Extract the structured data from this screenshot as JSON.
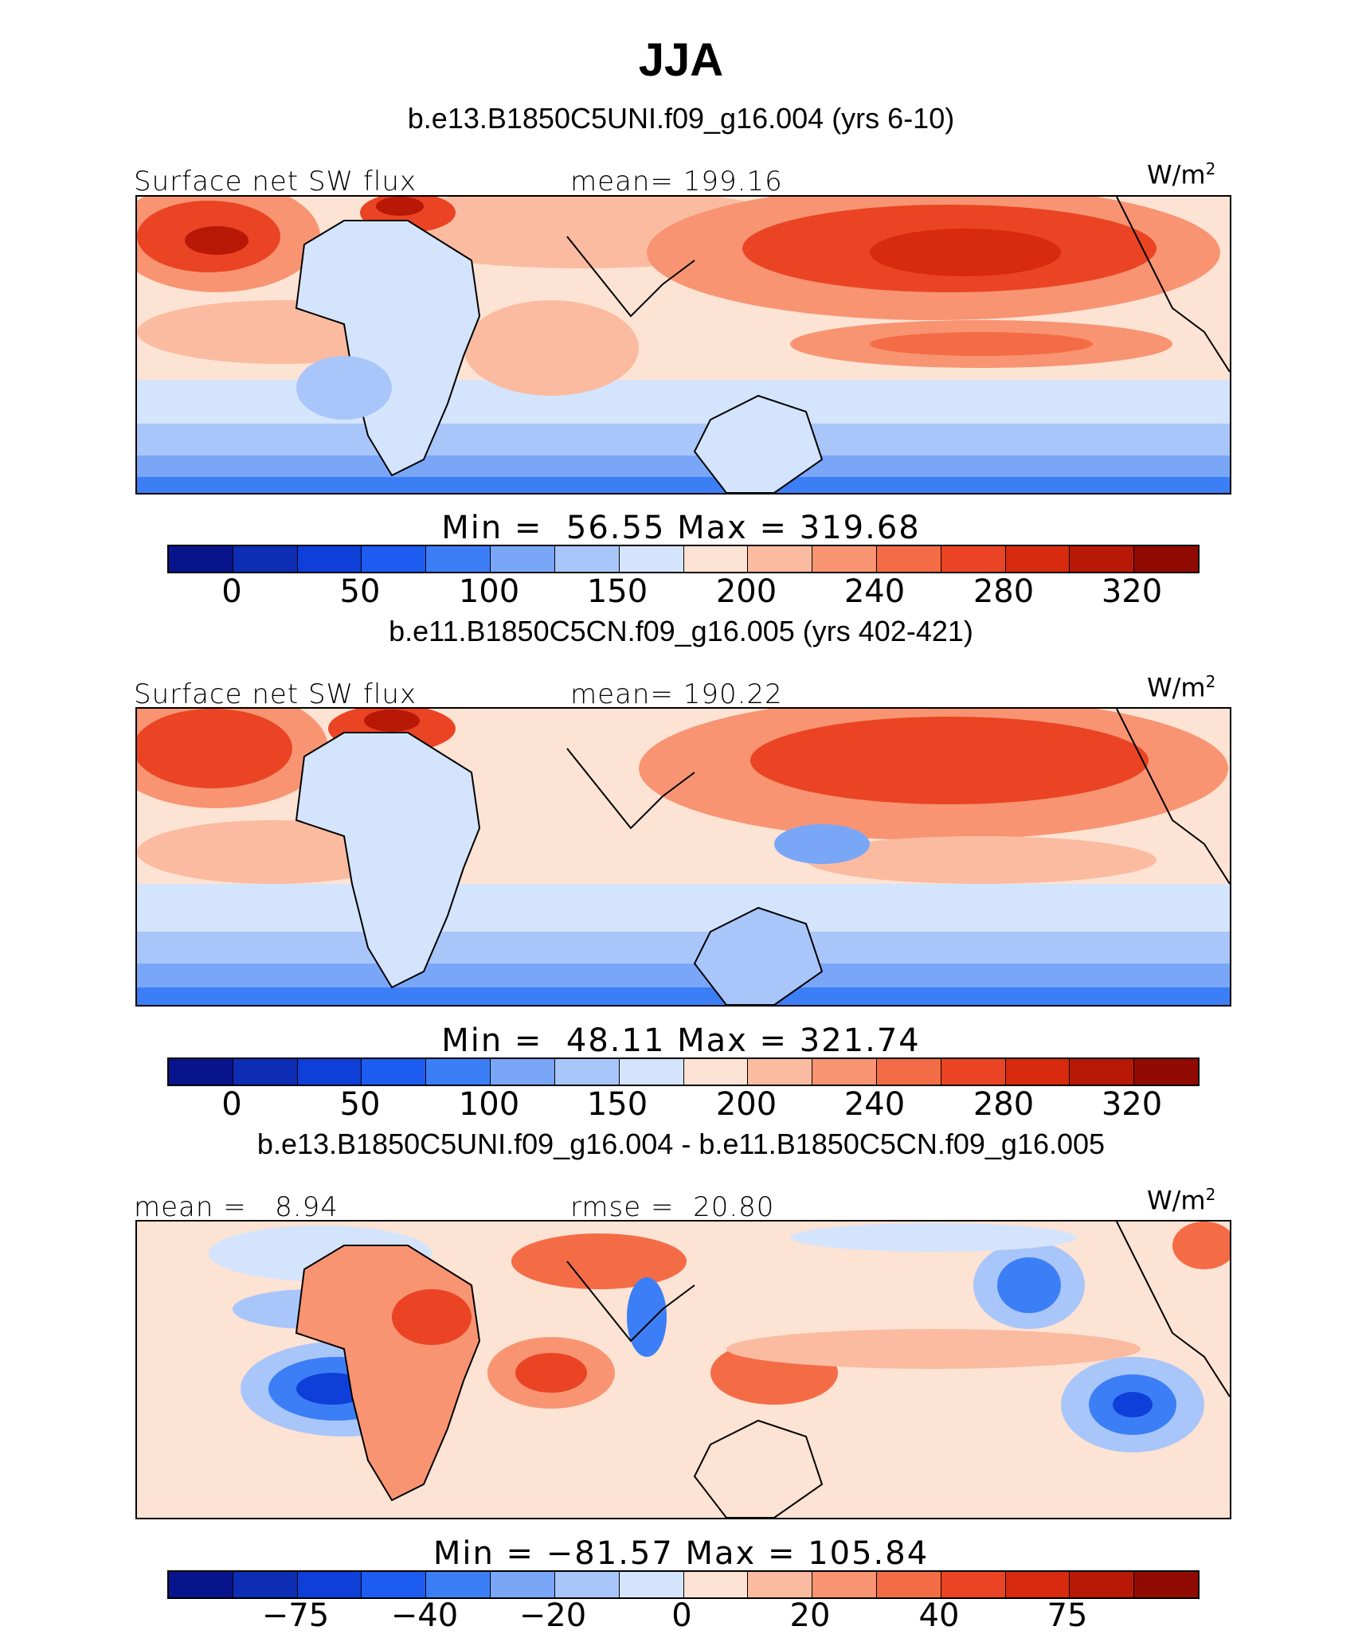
{
  "header": {
    "season": "JJA"
  },
  "panels": [
    {
      "case_title": "b.e13.B1850C5UNI.f09_g16.004 (yrs 6-10)",
      "variable": "Surface net SW flux",
      "left_label": "Surface net SW flux",
      "mean_label": "mean=",
      "mean_value": "199.16",
      "units": "W/m",
      "units_sup": "2",
      "min_label": "Min  =",
      "min_value": "56.55",
      "max_label": "Max  =",
      "max_value": "319.68",
      "colorbar_ticks": [
        "0",
        "50",
        "100",
        "150",
        "200",
        "240",
        "280",
        "320"
      ]
    },
    {
      "case_title": "b.e11.B1850C5CN.f09_g16.005 (yrs 402-421)",
      "variable": "Surface net SW flux",
      "left_label": "Surface net SW flux",
      "mean_label": "mean=",
      "mean_value": "190.22",
      "units": "W/m",
      "units_sup": "2",
      "min_label": "Min  =",
      "min_value": "48.11",
      "max_label": "Max  =",
      "max_value": "321.74",
      "colorbar_ticks": [
        "0",
        "50",
        "100",
        "150",
        "200",
        "240",
        "280",
        "320"
      ]
    },
    {
      "case_title": "b.e13.B1850C5UNI.f09_g16.004 - b.e11.B1850C5CN.f09_g16.005",
      "left_label": "mean  =",
      "left_value": "8.94",
      "mean_label": "rmse  =",
      "mean_value": "20.80",
      "units": "W/m",
      "units_sup": "2",
      "min_label": "Min  =",
      "min_value": "−81.57",
      "max_label": "Max  =",
      "max_value": "105.84",
      "colorbar_ticks": [
        "−75",
        "−40",
        "−20",
        "0",
        "20",
        "40",
        "75"
      ]
    }
  ],
  "colorbar_colors": [
    "#08148c",
    "#0c2db4",
    "#0e3fd8",
    "#1c5cf0",
    "#3c7ef6",
    "#7aa6f8",
    "#a9c6fa",
    "#d4e4fc",
    "#fde3d4",
    "#fbbba0",
    "#f89472",
    "#f46c46",
    "#ea4424",
    "#d82a0e",
    "#b81806",
    "#920b02"
  ]
}
